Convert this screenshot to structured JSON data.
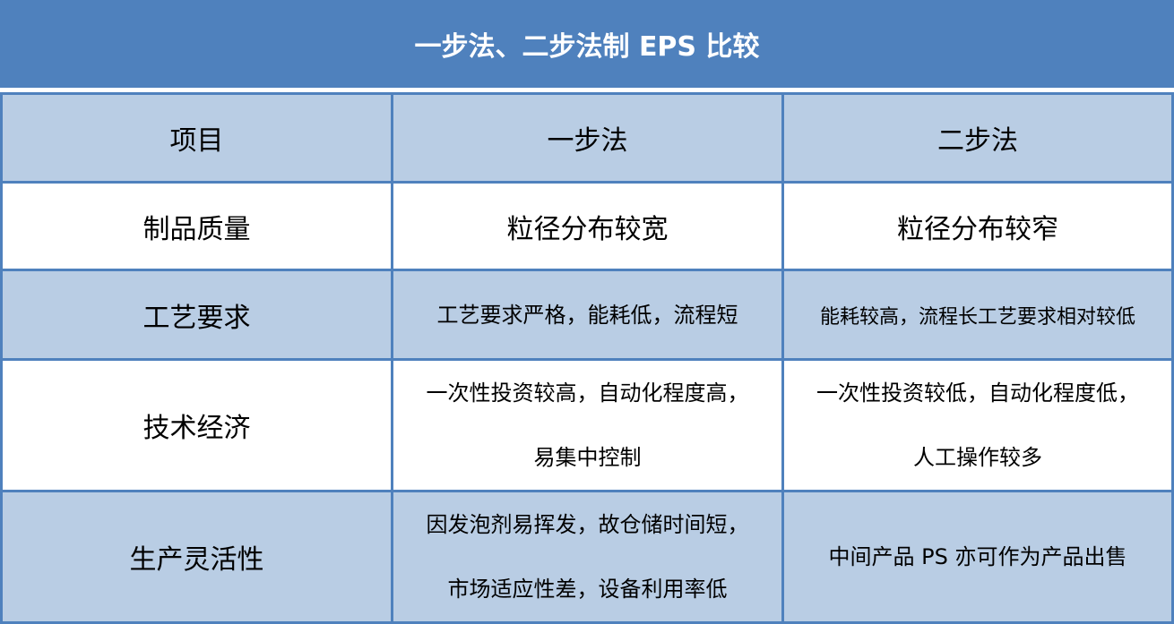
{
  "title": "一步法、二步法制 EPS 比较",
  "table": {
    "headers": [
      "项目",
      "一步法",
      "二步法"
    ],
    "rows": [
      {
        "item": "制品质量",
        "one_step": [
          "粒径分布较宽"
        ],
        "two_step": [
          "粒径分布较窄"
        ]
      },
      {
        "item": "工艺要求",
        "one_step": [
          "工艺要求严格，能耗低，流程短"
        ],
        "two_step": [
          "能耗较高，流程长工艺要求相对较低"
        ]
      },
      {
        "item": "技术经济",
        "one_step": [
          "一次性投资较高，自动化程度高，",
          "易集中控制"
        ],
        "two_step": [
          "一次性投资较低，自动化程度低，",
          "人工操作较多"
        ]
      },
      {
        "item": "生产灵活性",
        "one_step": [
          "因发泡剂易挥发，故仓储时间短，",
          "市场适应性差，设备利用率低"
        ],
        "two_step": [
          "中间产品 PS 亦可作为产品出售"
        ]
      }
    ]
  },
  "colors": {
    "header_bg": "#4f81bd",
    "shade_bg": "#b9cde4",
    "border": "#4f81bd"
  }
}
